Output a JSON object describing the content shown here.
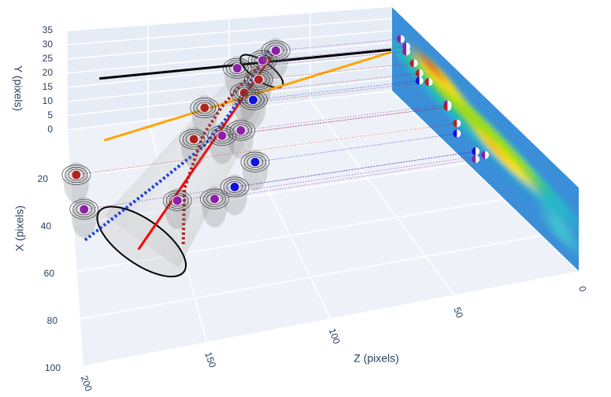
{
  "chart_data": {
    "type": "scatter3d",
    "xaxis_title": "X (pixels)",
    "yaxis_title": "Y (pixels)",
    "zaxis_title": "Z (pixels)",
    "xlim": [
      0,
      100
    ],
    "ylim": [
      0,
      35
    ],
    "zlim": [
      0,
      200
    ],
    "xticks": [
      20,
      40,
      60,
      80,
      100
    ],
    "yticks": [
      0,
      5,
      10,
      15,
      20,
      25,
      30,
      35
    ],
    "zticks": [
      0,
      50,
      100,
      150,
      200
    ],
    "grid": true,
    "series": [
      {
        "mode": "lines",
        "color": "#000000",
        "x": [
          0,
          0
        ],
        "y": [
          17,
          17
        ],
        "z": [
          180,
          0
        ]
      },
      {
        "mode": "lines",
        "color": "#ffa500",
        "x": [
          15,
          0
        ],
        "y": [
          7,
          16
        ],
        "z": [
          180,
          0
        ]
      },
      {
        "mode": "lines",
        "color": "#ff0000",
        "x": [
          55,
          8
        ],
        "y": [
          0,
          25
        ],
        "z": [
          170,
          80
        ]
      },
      {
        "mode": "lines",
        "color": "#1f3fdd",
        "dash": "dot",
        "x": [
          50,
          40,
          30,
          22,
          15,
          10,
          6
        ],
        "y": [
          2,
          8,
          12,
          14,
          18,
          22,
          26
        ],
        "z": [
          195,
          160,
          130,
          115,
          100,
          90,
          80
        ]
      },
      {
        "mode": "lines",
        "color": "#b22222",
        "dash": "dot",
        "x": [
          60,
          45,
          30,
          20,
          12,
          6
        ],
        "y": [
          3,
          10,
          16,
          18,
          22,
          26
        ],
        "z": [
          150,
          145,
          130,
          115,
          95,
          75
        ]
      },
      {
        "mode": "markers",
        "color": "#8e1fa8",
        "x": [
          45,
          50,
          45,
          30,
          30,
          8,
          8,
          5
        ],
        "y": [
          8,
          10,
          5,
          15,
          16,
          22,
          24,
          25
        ],
        "z": [
          195,
          150,
          130,
          120,
          110,
          100,
          85,
          75
        ]
      },
      {
        "mode": "markers",
        "color": "#b22222",
        "x": [
          35,
          30,
          20,
          15,
          12
        ],
        "y": [
          12,
          15,
          18,
          18,
          20
        ],
        "z": [
          198,
          135,
          125,
          100,
          90
        ]
      },
      {
        "mode": "markers",
        "color": "#1010e0",
        "x": [
          45,
          35,
          15
        ],
        "y": [
          8,
          8,
          15
        ],
        "z": [
          120,
          105,
          95
        ]
      }
    ]
  }
}
